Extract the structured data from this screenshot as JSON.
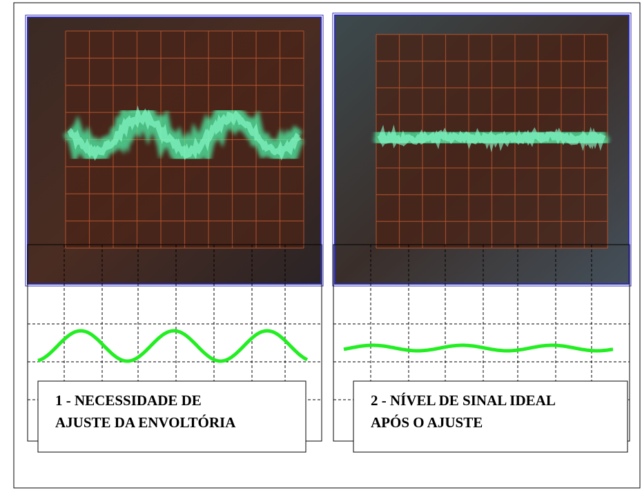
{
  "panels": [
    {
      "label": [
        "1 - NECESSIDADE DE",
        "AJUSTE DA ENVOLTÓRIA"
      ]
    },
    {
      "label": [
        "2 - NÍVEL DE SINAL IDEAL",
        "APÓS O AJUSTE"
      ]
    }
  ]
}
